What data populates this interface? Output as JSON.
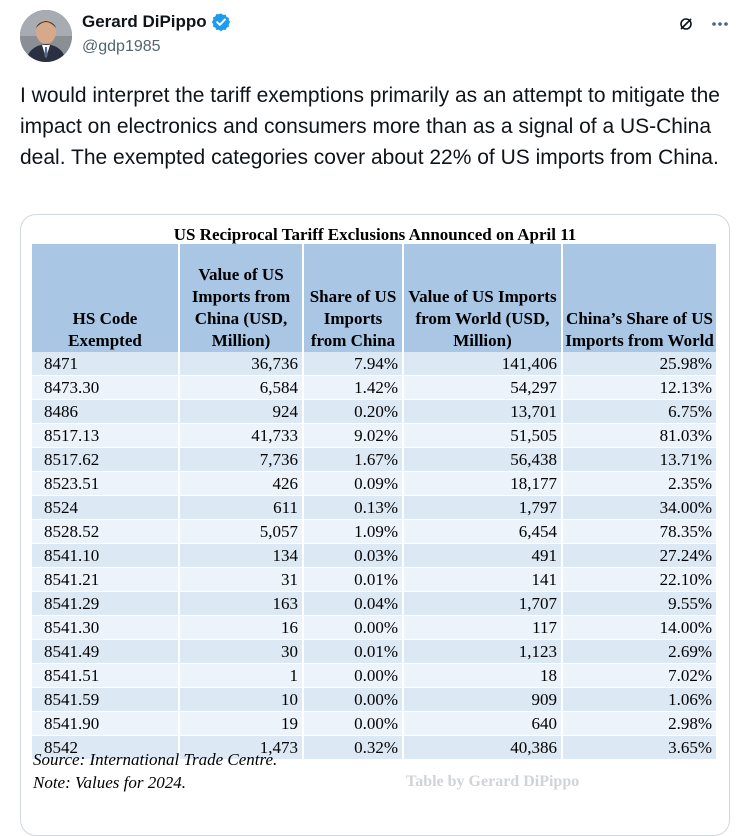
{
  "author": {
    "display_name": "Gerard DiPippo",
    "handle": "@gdp1985",
    "verified": true
  },
  "icons": {
    "verified": "verified-badge-icon",
    "grok": "grok-icon",
    "more": "more-options-icon"
  },
  "colors": {
    "verified_blue": "#1d9bf0",
    "header_fill": "#a9c6e4",
    "row_odd": "#dce8f4",
    "row_even": "#edf3fa"
  },
  "tweet_text": "I would interpret the tariff exemptions primarily as an attempt to mitigate the impact on electronics and consumers more than as a signal of a US-China deal. The exempted categories cover about 22% of US imports from China.",
  "table": {
    "title": "US Reciprocal Tariff Exclusions Announced on April 11",
    "headers": [
      "HS Code Exempted",
      "Value of US Imports from China (USD, Million)",
      "Share of US Imports from China",
      "Value of US Imports from World (USD, Million)",
      "China’s Share of US Imports from World"
    ],
    "rows": [
      [
        "8471",
        "36,736",
        "7.94%",
        "141,406",
        "25.98%"
      ],
      [
        "8473.30",
        "6,584",
        "1.42%",
        "54,297",
        "12.13%"
      ],
      [
        "8486",
        "924",
        "0.20%",
        "13,701",
        "6.75%"
      ],
      [
        "8517.13",
        "41,733",
        "9.02%",
        "51,505",
        "81.03%"
      ],
      [
        "8517.62",
        "7,736",
        "1.67%",
        "56,438",
        "13.71%"
      ],
      [
        "8523.51",
        "426",
        "0.09%",
        "18,177",
        "2.35%"
      ],
      [
        "8524",
        "611",
        "0.13%",
        "1,797",
        "34.00%"
      ],
      [
        "8528.52",
        "5,057",
        "1.09%",
        "6,454",
        "78.35%"
      ],
      [
        "8541.10",
        "134",
        "0.03%",
        "491",
        "27.24%"
      ],
      [
        "8541.21",
        "31",
        "0.01%",
        "141",
        "22.10%"
      ],
      [
        "8541.29",
        "163",
        "0.04%",
        "1,707",
        "9.55%"
      ],
      [
        "8541.30",
        "16",
        "0.00%",
        "117",
        "14.00%"
      ],
      [
        "8541.49",
        "30",
        "0.01%",
        "1,123",
        "2.69%"
      ],
      [
        "8541.51",
        "1",
        "0.00%",
        "18",
        "7.02%"
      ],
      [
        "8541.59",
        "10",
        "0.00%",
        "909",
        "1.06%"
      ],
      [
        "8541.90",
        "19",
        "0.00%",
        "640",
        "2.98%"
      ],
      [
        "8542",
        "1,473",
        "0.32%",
        "40,386",
        "3.65%"
      ]
    ],
    "source": "Source: International Trade Centre.",
    "note": "Note: Values for 2024.",
    "watermark": "Table by Gerard DiPippo"
  }
}
